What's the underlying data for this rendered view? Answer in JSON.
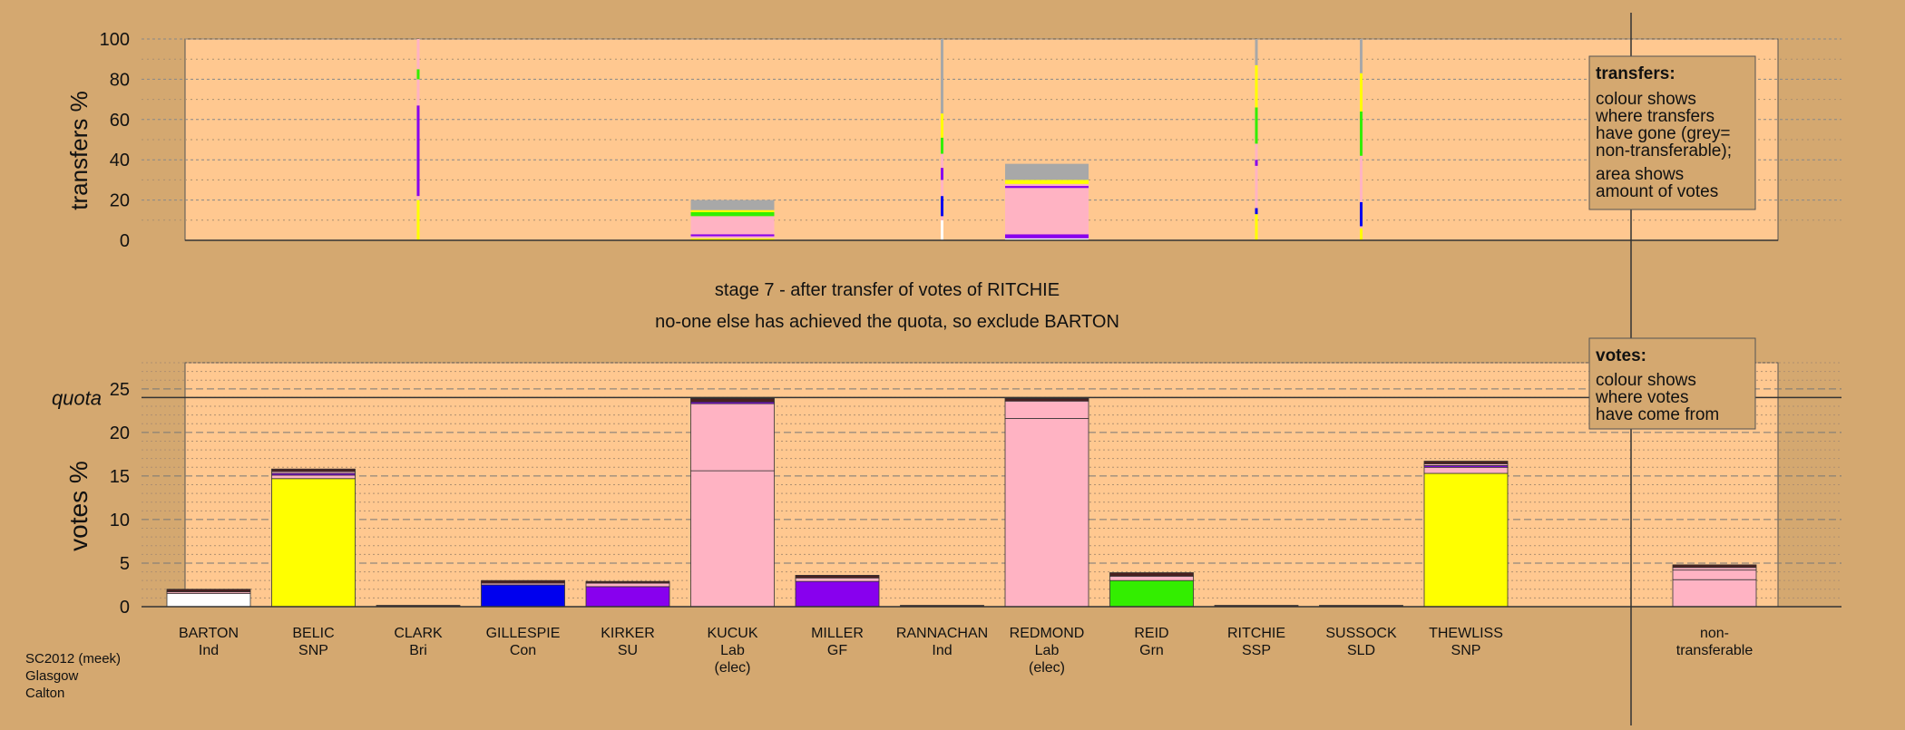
{
  "chart_data": [
    {
      "type": "bar",
      "subtype": "stacked",
      "ylabel": "transfers %",
      "ylim": [
        0,
        100
      ],
      "yticks": [
        0,
        20,
        40,
        60,
        80,
        100
      ],
      "grid": true,
      "legend_box": {
        "title": "transfers:",
        "lines": [
          "colour shows",
          "where transfers",
          "have gone (grey=",
          "non-transferable);",
          "area shows",
          "amount of votes"
        ]
      },
      "categories": [
        "BARTON",
        "BELIC",
        "CLARK",
        "GILLESPIE",
        "KIRKER",
        "KUCUK",
        "MILLER",
        "RANNACHAN",
        "REDMOND",
        "REID",
        "RITCHIE",
        "SUSSOCK",
        "THEWLISS",
        "non-transferable"
      ],
      "bars": [
        {
          "category": "CLARK",
          "width_share": 0.01,
          "segments": [
            {
              "color": "#ffff00",
              "from": 0,
              "to": 20
            },
            {
              "color": "#ffb3c3",
              "from": 20,
              "to": 22
            },
            {
              "color": "#8800ee",
              "from": 22,
              "to": 67
            },
            {
              "color": "#ffb3c3",
              "from": 67,
              "to": 80
            },
            {
              "color": "#33ee00",
              "from": 80,
              "to": 85
            },
            {
              "color": "#ffb3c3",
              "from": 85,
              "to": 100
            }
          ]
        },
        {
          "category": "KUCUK",
          "width_share": 1,
          "segments": [
            {
              "color": "#ffff00",
              "from": 0,
              "to": 1
            },
            {
              "color": "#ffb3c3",
              "from": 1,
              "to": 2
            },
            {
              "color": "#8800ee",
              "from": 2,
              "to": 3
            },
            {
              "color": "#ffb3c3",
              "from": 3,
              "to": 12
            },
            {
              "color": "#33ee00",
              "from": 12,
              "to": 14
            },
            {
              "color": "#ffff00",
              "from": 14,
              "to": 15
            },
            {
              "color": "#a8a8a8",
              "from": 15,
              "to": 20
            }
          ]
        },
        {
          "category": "RANNACHAN",
          "width_share": 0.02,
          "segments": [
            {
              "color": "#ffffff",
              "from": 0,
              "to": 10
            },
            {
              "color": "#ffb3c3",
              "from": 10,
              "to": 12
            },
            {
              "color": "#0000ee",
              "from": 12,
              "to": 22
            },
            {
              "color": "#ffb3c3",
              "from": 22,
              "to": 30
            },
            {
              "color": "#8800ee",
              "from": 30,
              "to": 36
            },
            {
              "color": "#ffb3c3",
              "from": 36,
              "to": 43
            },
            {
              "color": "#33ee00",
              "from": 43,
              "to": 51
            },
            {
              "color": "#ffff00",
              "from": 51,
              "to": 63
            },
            {
              "color": "#a8a8a8",
              "from": 63,
              "to": 100
            }
          ]
        },
        {
          "category": "REDMOND",
          "width_share": 1,
          "segments": [
            {
              "color": "#ffffff",
              "from": 0,
              "to": 1
            },
            {
              "color": "#8800ee",
              "from": 1,
              "to": 3
            },
            {
              "color": "#ffb3c3",
              "from": 3,
              "to": 26
            },
            {
              "color": "#8800ee",
              "from": 26,
              "to": 27
            },
            {
              "color": "#ffb3c3",
              "from": 27,
              "to": 28
            },
            {
              "color": "#ffff00",
              "from": 28,
              "to": 30
            },
            {
              "color": "#a8a8a8",
              "from": 30,
              "to": 38
            }
          ]
        },
        {
          "category": "RITCHIE",
          "width_share": 0.02,
          "segments": [
            {
              "color": "#ffff00",
              "from": 0,
              "to": 13
            },
            {
              "color": "#0000ee",
              "from": 13,
              "to": 16
            },
            {
              "color": "#ffb3c3",
              "from": 16,
              "to": 37
            },
            {
              "color": "#8800ee",
              "from": 37,
              "to": 40
            },
            {
              "color": "#ffb3c3",
              "from": 40,
              "to": 48
            },
            {
              "color": "#33ee00",
              "from": 48,
              "to": 66
            },
            {
              "color": "#ffff00",
              "from": 66,
              "to": 87
            },
            {
              "color": "#a8a8a8",
              "from": 87,
              "to": 100
            }
          ]
        },
        {
          "category": "SUSSOCK",
          "width_share": 0.02,
          "segments": [
            {
              "color": "#ffff00",
              "from": 0,
              "to": 6
            },
            {
              "color": "#ffb3c3",
              "from": 6,
              "to": 7
            },
            {
              "color": "#0000ee",
              "from": 7,
              "to": 19
            },
            {
              "color": "#ffb3c3",
              "from": 19,
              "to": 42
            },
            {
              "color": "#33ee00",
              "from": 42,
              "to": 64
            },
            {
              "color": "#ffff00",
              "from": 64,
              "to": 83
            },
            {
              "color": "#a8a8a8",
              "from": 83,
              "to": 100
            }
          ]
        }
      ]
    },
    {
      "type": "bar",
      "subtype": "stacked",
      "ylabel": "votes %",
      "ylim": [
        0,
        28
      ],
      "yticks": [
        0,
        5,
        10,
        15,
        20,
        25
      ],
      "quota": 24,
      "quota_label": "quota",
      "grid": true,
      "legend_box": {
        "title": "votes:",
        "lines": [
          "colour shows",
          "where votes",
          "have come from"
        ]
      },
      "categories": [
        {
          "name": "BARTON",
          "party": "Ind",
          "status": ""
        },
        {
          "name": "BELIC",
          "party": "SNP",
          "status": ""
        },
        {
          "name": "CLARK",
          "party": "Bri",
          "status": ""
        },
        {
          "name": "GILLESPIE",
          "party": "Con",
          "status": ""
        },
        {
          "name": "KIRKER",
          "party": "SU",
          "status": ""
        },
        {
          "name": "KUCUK",
          "party": "Lab",
          "status": "(elec)"
        },
        {
          "name": "MILLER",
          "party": "GF",
          "status": ""
        },
        {
          "name": "RANNACHAN",
          "party": "Ind",
          "status": ""
        },
        {
          "name": "REDMOND",
          "party": "Lab",
          "status": "(elec)"
        },
        {
          "name": "REID",
          "party": "Grn",
          "status": ""
        },
        {
          "name": "RITCHIE",
          "party": "SSP",
          "status": ""
        },
        {
          "name": "SUSSOCK",
          "party": "SLD",
          "status": ""
        },
        {
          "name": "THEWLISS",
          "party": "SNP",
          "status": ""
        },
        {
          "name": "non-",
          "party": "transferable",
          "status": ""
        }
      ],
      "bars": [
        {
          "category": "BARTON",
          "segments": [
            {
              "color": "#ffffff",
              "from": 0,
              "to": 1.5
            },
            {
              "color": "#ffb3c3",
              "from": 1.5,
              "to": 1.7
            },
            {
              "color": "#4a2020",
              "from": 1.7,
              "to": 2.0
            }
          ]
        },
        {
          "category": "BELIC",
          "segments": [
            {
              "color": "#ffff00",
              "from": 0,
              "to": 14.7
            },
            {
              "color": "#ffb3c3",
              "from": 14.7,
              "to": 15.1
            },
            {
              "color": "#8800ee",
              "from": 15.1,
              "to": 15.3
            },
            {
              "color": "#ffb3c3",
              "from": 15.3,
              "to": 15.5
            },
            {
              "color": "#4a2020",
              "from": 15.5,
              "to": 15.8
            }
          ]
        },
        {
          "category": "CLARK",
          "segments": [
            {
              "color": "#4a2020",
              "from": 0,
              "to": 0.15
            }
          ]
        },
        {
          "category": "GILLESPIE",
          "segments": [
            {
              "color": "#0000ee",
              "from": 0,
              "to": 2.5
            },
            {
              "color": "#ffb3c3",
              "from": 2.5,
              "to": 2.7
            },
            {
              "color": "#4a2020",
              "from": 2.7,
              "to": 3.0
            }
          ]
        },
        {
          "category": "KIRKER",
          "segments": [
            {
              "color": "#8800ee",
              "from": 0,
              "to": 2.3
            },
            {
              "color": "#ffb3c3",
              "from": 2.3,
              "to": 2.7
            },
            {
              "color": "#4a2020",
              "from": 2.7,
              "to": 2.9
            }
          ]
        },
        {
          "category": "KUCUK",
          "segments": [
            {
              "color": "#ffb3c3",
              "from": 0,
              "to": 15.6
            },
            {
              "color": "#ffb3c3",
              "from": 15.6,
              "to": 23.3
            },
            {
              "color": "#8800ee",
              "from": 23.3,
              "to": 23.5
            },
            {
              "color": "#4a2020",
              "from": 23.5,
              "to": 23.9
            }
          ]
        },
        {
          "category": "MILLER",
          "segments": [
            {
              "color": "#8800ee",
              "from": 0,
              "to": 2.9
            },
            {
              "color": "#ffb3c3",
              "from": 2.9,
              "to": 3.3
            },
            {
              "color": "#4a2020",
              "from": 3.3,
              "to": 3.6
            }
          ]
        },
        {
          "category": "RANNACHAN",
          "segments": [
            {
              "color": "#4a2020",
              "from": 0,
              "to": 0.15
            }
          ]
        },
        {
          "category": "REDMOND",
          "segments": [
            {
              "color": "#ffb3c3",
              "from": 0,
              "to": 21.6
            },
            {
              "color": "#ffb3c3",
              "from": 21.6,
              "to": 23.6
            },
            {
              "color": "#4a2020",
              "from": 23.6,
              "to": 23.9
            }
          ]
        },
        {
          "category": "REID",
          "segments": [
            {
              "color": "#33ee00",
              "from": 0,
              "to": 3.0
            },
            {
              "color": "#ffb3c3",
              "from": 3.0,
              "to": 3.5
            },
            {
              "color": "#4a2020",
              "from": 3.5,
              "to": 3.9
            }
          ]
        },
        {
          "category": "RITCHIE",
          "segments": [
            {
              "color": "#4a2020",
              "from": 0,
              "to": 0.15
            }
          ]
        },
        {
          "category": "SUSSOCK",
          "segments": [
            {
              "color": "#4a2020",
              "from": 0,
              "to": 0.15
            }
          ]
        },
        {
          "category": "THEWLISS",
          "segments": [
            {
              "color": "#ffff00",
              "from": 0,
              "to": 15.3
            },
            {
              "color": "#ffb3c3",
              "from": 15.3,
              "to": 16.0
            },
            {
              "color": "#8800ee",
              "from": 16.0,
              "to": 16.2
            },
            {
              "color": "#ffb3c3",
              "from": 16.2,
              "to": 16.4
            },
            {
              "color": "#4a2020",
              "from": 16.4,
              "to": 16.7
            }
          ]
        },
        {
          "category": "non-transferable",
          "segments": [
            {
              "color": "#ffb3c3",
              "from": 0,
              "to": 3.1
            },
            {
              "color": "#ffb3c3",
              "from": 3.1,
              "to": 4.2
            },
            {
              "color": "#ffb3c3",
              "from": 4.2,
              "to": 4.5
            },
            {
              "color": "#4a2020",
              "from": 4.5,
              "to": 4.8
            }
          ]
        }
      ]
    }
  ],
  "stage_text": "stage 7 - after transfer of votes of RITCHIE",
  "exclude_text": "no-one else has achieved the quota, so exclude BARTON",
  "footer": [
    "SC2012 (meek)",
    "Glasgow",
    "Calton"
  ],
  "colors": {
    "background": "#d4a870",
    "panel": "#ffc890",
    "legend_box": "#d4a870",
    "non_transferable": "#a8a8a8"
  }
}
